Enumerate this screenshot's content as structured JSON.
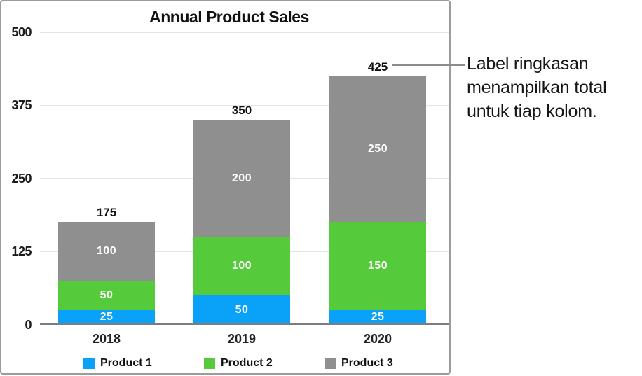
{
  "figure": {
    "annotation": {
      "text": "Label ringkasan menampilkan total untuk tiap kolom.",
      "lines": [
        "Label ringkasan",
        "menampilkan total",
        "untuk tiap kolom."
      ]
    }
  },
  "chart_data": {
    "type": "bar",
    "stacked": true,
    "title": "Annual Product Sales",
    "categories": [
      "2018",
      "2019",
      "2020"
    ],
    "series": [
      {
        "name": "Product 1",
        "color": "#0aa1f8",
        "values": [
          25,
          50,
          25
        ]
      },
      {
        "name": "Product 2",
        "color": "#55cb3b",
        "values": [
          50,
          100,
          150
        ]
      },
      {
        "name": "Product 3",
        "color": "#8f8f8f",
        "values": [
          100,
          200,
          250
        ]
      }
    ],
    "totals": [
      175,
      350,
      425
    ],
    "y_ticks": [
      0,
      125,
      250,
      375,
      500
    ],
    "ylim": [
      0,
      500
    ],
    "xlabel": "",
    "ylabel": "",
    "grid": true,
    "legend_position": "bottom",
    "colors": {
      "grid_line": "#e4e4e4",
      "axis_line": "#7d7d7d",
      "tick_label": "#1c1c1c",
      "segment_label": "#ffffff",
      "total_label": "#111111",
      "callout_line": "#8c8c8c",
      "chart_border": "#9b9b9b"
    }
  }
}
